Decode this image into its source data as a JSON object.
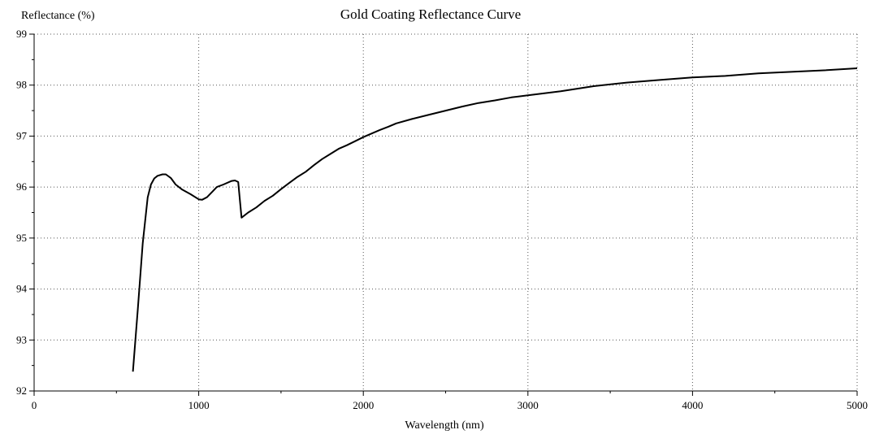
{
  "chart_data": {
    "type": "line",
    "title": "Gold Coating Reflectance Curve",
    "xlabel": "Wavelength (nm)",
    "ylabel": "Reflectance (%)",
    "xlim": [
      0,
      5000
    ],
    "ylim": [
      92,
      99
    ],
    "xticks": [
      0,
      1000,
      2000,
      3000,
      4000,
      5000
    ],
    "yticks": [
      92,
      93,
      94,
      95,
      96,
      97,
      98,
      99
    ],
    "grid": true,
    "series": [
      {
        "name": "Reflectance",
        "color": "#000000",
        "x": [
          600,
          630,
          660,
          690,
          710,
          730,
          750,
          780,
          800,
          830,
          860,
          900,
          950,
          1000,
          1020,
          1050,
          1080,
          1110,
          1150,
          1200,
          1220,
          1240,
          1260,
          1300,
          1350,
          1400,
          1450,
          1500,
          1550,
          1600,
          1650,
          1700,
          1750,
          1800,
          1850,
          1900,
          1950,
          2000,
          2050,
          2100,
          2150,
          2200,
          2300,
          2400,
          2500,
          2600,
          2700,
          2800,
          2900,
          3000,
          3200,
          3400,
          3600,
          3800,
          4000,
          4200,
          4400,
          4600,
          4800,
          5000
        ],
        "values": [
          92.38,
          93.6,
          94.9,
          95.8,
          96.05,
          96.17,
          96.22,
          96.25,
          96.25,
          96.18,
          96.05,
          95.95,
          95.86,
          95.76,
          95.75,
          95.8,
          95.9,
          96.0,
          96.05,
          96.12,
          96.13,
          96.1,
          95.4,
          95.5,
          95.6,
          95.73,
          95.83,
          95.96,
          96.08,
          96.2,
          96.3,
          96.43,
          96.55,
          96.65,
          96.75,
          96.82,
          96.9,
          96.98,
          97.05,
          97.12,
          97.18,
          97.25,
          97.34,
          97.42,
          97.5,
          97.58,
          97.65,
          97.7,
          97.76,
          97.8,
          97.88,
          97.98,
          98.05,
          98.1,
          98.15,
          98.18,
          98.23,
          98.26,
          98.29,
          98.33
        ]
      }
    ]
  }
}
